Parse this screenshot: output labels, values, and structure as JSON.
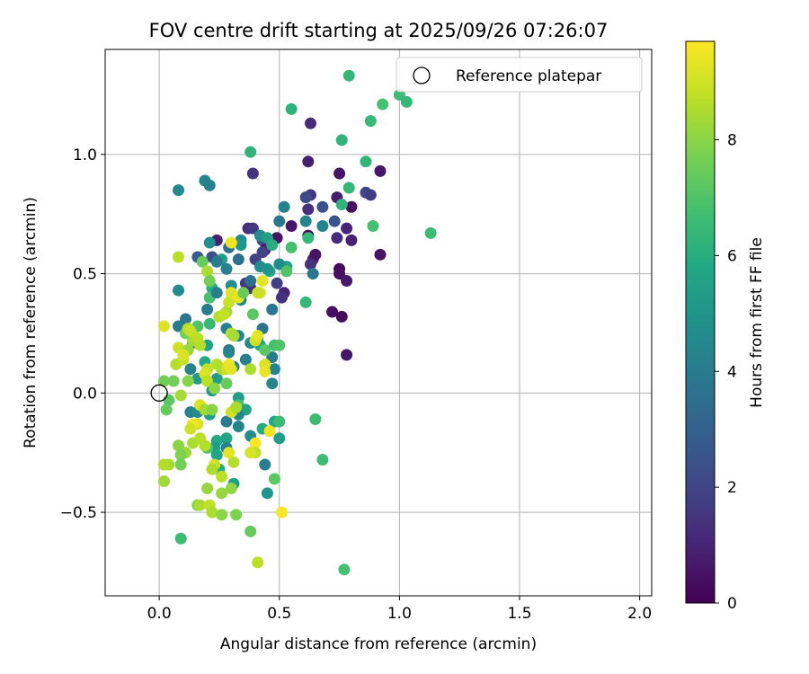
{
  "chart_data": {
    "type": "scatter",
    "title": "FOV centre drift starting at 2025/09/26 07:26:07",
    "xlabel": "Angular distance from reference (arcmin)",
    "ylabel": "Rotation from reference (arcmin)",
    "xlim": [
      -0.225,
      2.05
    ],
    "ylim": [
      -0.85,
      1.44
    ],
    "xticks": [
      0.0,
      0.5,
      1.0,
      1.5,
      2.0
    ],
    "xtick_labels": [
      "0.0",
      "0.5",
      "1.0",
      "1.5",
      "2.0"
    ],
    "yticks": [
      -0.5,
      0.0,
      0.5,
      1.0
    ],
    "ytick_labels": [
      "−0.5",
      "0.0",
      "0.5",
      "1.0"
    ],
    "grid": true,
    "legend": {
      "position": "top-right",
      "label": "Reference platepar"
    },
    "reference_point": {
      "x": 0.0,
      "y": 0.0
    },
    "colorbar": {
      "label": "Hours from first FF file",
      "min": 0,
      "max": 9.7,
      "ticks": [
        0,
        2,
        4,
        6,
        8
      ],
      "tick_labels": [
        "0",
        "2",
        "4",
        "6",
        "8"
      ],
      "colormap": "viridis"
    },
    "points": [
      {
        "x": 0.39,
        "y": 0.92,
        "h": 1.5
      },
      {
        "x": 0.63,
        "y": 1.13,
        "h": 1.2
      },
      {
        "x": 0.62,
        "y": 0.97,
        "h": 0.8
      },
      {
        "x": 0.75,
        "y": 0.92,
        "h": 0.5
      },
      {
        "x": 0.92,
        "y": 0.93,
        "h": 0.6
      },
      {
        "x": 0.86,
        "y": 0.84,
        "h": 2.0
      },
      {
        "x": 0.88,
        "y": 0.83,
        "h": 1.7
      },
      {
        "x": 0.63,
        "y": 0.83,
        "h": 1.6
      },
      {
        "x": 0.61,
        "y": 0.82,
        "h": 2.2
      },
      {
        "x": 0.74,
        "y": 0.82,
        "h": 0.8
      },
      {
        "x": 0.8,
        "y": 0.78,
        "h": 0.4
      },
      {
        "x": 0.68,
        "y": 0.78,
        "h": 2.4
      },
      {
        "x": 0.62,
        "y": 0.77,
        "h": 1.3
      },
      {
        "x": 0.73,
        "y": 0.72,
        "h": 2.5
      },
      {
        "x": 0.78,
        "y": 0.69,
        "h": 1.0
      },
      {
        "x": 0.55,
        "y": 0.7,
        "h": 0.6
      },
      {
        "x": 0.74,
        "y": 0.65,
        "h": 1.2
      },
      {
        "x": 0.8,
        "y": 0.64,
        "h": 0.9
      },
      {
        "x": 0.62,
        "y": 0.66,
        "h": 0.3
      },
      {
        "x": 0.37,
        "y": 0.69,
        "h": 1.3
      },
      {
        "x": 0.39,
        "y": 0.69,
        "h": 1.6
      },
      {
        "x": 0.49,
        "y": 0.65,
        "h": 0.5
      },
      {
        "x": 0.43,
        "y": 0.64,
        "h": 2.2
      },
      {
        "x": 0.44,
        "y": 0.6,
        "h": 0.7
      },
      {
        "x": 0.64,
        "y": 0.56,
        "h": 1.0
      },
      {
        "x": 0.65,
        "y": 0.58,
        "h": 0.5
      },
      {
        "x": 0.63,
        "y": 0.54,
        "h": 1.4
      },
      {
        "x": 0.43,
        "y": 0.59,
        "h": 1.9
      },
      {
        "x": 0.75,
        "y": 0.52,
        "h": 0.2
      },
      {
        "x": 0.75,
        "y": 0.5,
        "h": 0.4
      },
      {
        "x": 0.78,
        "y": 0.47,
        "h": 0.7
      },
      {
        "x": 0.92,
        "y": 0.58,
        "h": 0.5
      },
      {
        "x": 0.72,
        "y": 0.34,
        "h": 0.4
      },
      {
        "x": 0.76,
        "y": 0.32,
        "h": 0.3
      },
      {
        "x": 0.78,
        "y": 0.16,
        "h": 0.6
      },
      {
        "x": 0.52,
        "y": 0.42,
        "h": 1.0
      },
      {
        "x": 0.51,
        "y": 0.4,
        "h": 1.4
      },
      {
        "x": 0.49,
        "y": 0.46,
        "h": 1.8
      },
      {
        "x": 0.36,
        "y": 0.46,
        "h": 1.6
      },
      {
        "x": 0.38,
        "y": 0.44,
        "h": 1.2
      },
      {
        "x": 0.4,
        "y": 0.56,
        "h": 1.9
      },
      {
        "x": 0.24,
        "y": 0.64,
        "h": 0.9
      },
      {
        "x": 0.22,
        "y": 0.57,
        "h": 2.3
      },
      {
        "x": 0.16,
        "y": 0.57,
        "h": 2.8
      },
      {
        "x": 0.38,
        "y": 1.01,
        "h": 6.3
      },
      {
        "x": 0.55,
        "y": 1.19,
        "h": 6.2
      },
      {
        "x": 0.79,
        "y": 1.33,
        "h": 6.4
      },
      {
        "x": 1.0,
        "y": 1.25,
        "h": 6.6
      },
      {
        "x": 1.03,
        "y": 1.22,
        "h": 6.4
      },
      {
        "x": 0.93,
        "y": 1.21,
        "h": 6.8
      },
      {
        "x": 0.88,
        "y": 1.14,
        "h": 6.5
      },
      {
        "x": 0.76,
        "y": 1.06,
        "h": 6.3
      },
      {
        "x": 0.86,
        "y": 0.97,
        "h": 6.3
      },
      {
        "x": 0.79,
        "y": 0.86,
        "h": 6.4
      },
      {
        "x": 0.76,
        "y": 0.79,
        "h": 6.3
      },
      {
        "x": 0.89,
        "y": 0.7,
        "h": 6.8
      },
      {
        "x": 1.13,
        "y": 0.67,
        "h": 6.6
      },
      {
        "x": 0.08,
        "y": 0.85,
        "h": 4.5
      },
      {
        "x": 0.19,
        "y": 0.89,
        "h": 4.4
      },
      {
        "x": 0.21,
        "y": 0.87,
        "h": 4.2
      },
      {
        "x": 0.52,
        "y": 0.78,
        "h": 4.3
      },
      {
        "x": 0.61,
        "y": 0.72,
        "h": 4.4
      },
      {
        "x": 0.68,
        "y": 0.7,
        "h": 4.4
      },
      {
        "x": 0.5,
        "y": 0.72,
        "h": 3.8
      },
      {
        "x": 0.42,
        "y": 0.66,
        "h": 4.7
      },
      {
        "x": 0.45,
        "y": 0.65,
        "h": 5.4
      },
      {
        "x": 0.47,
        "y": 0.62,
        "h": 6.0
      },
      {
        "x": 0.62,
        "y": 0.65,
        "h": 6.4
      },
      {
        "x": 0.55,
        "y": 0.61,
        "h": 6.8
      },
      {
        "x": 0.53,
        "y": 0.53,
        "h": 5.6
      },
      {
        "x": 0.46,
        "y": 0.51,
        "h": 5.8
      },
      {
        "x": 0.5,
        "y": 0.54,
        "h": 4.6
      },
      {
        "x": 0.42,
        "y": 0.53,
        "h": 4.7
      },
      {
        "x": 0.45,
        "y": 0.52,
        "h": 5.0
      },
      {
        "x": 0.34,
        "y": 0.64,
        "h": 4.6
      },
      {
        "x": 0.34,
        "y": 0.62,
        "h": 5.0
      },
      {
        "x": 0.29,
        "y": 0.61,
        "h": 3.6
      },
      {
        "x": 0.26,
        "y": 0.56,
        "h": 5.5
      },
      {
        "x": 0.24,
        "y": 0.55,
        "h": 4.0
      },
      {
        "x": 0.21,
        "y": 0.63,
        "h": 4.8
      },
      {
        "x": 0.28,
        "y": 0.52,
        "h": 4.2
      },
      {
        "x": 0.33,
        "y": 0.56,
        "h": 3.5
      },
      {
        "x": 0.61,
        "y": 0.38,
        "h": 6.4
      },
      {
        "x": 0.64,
        "y": 0.5,
        "h": 3.8
      },
      {
        "x": 0.38,
        "y": 0.47,
        "h": 3.6
      },
      {
        "x": 0.34,
        "y": 0.39,
        "h": 4.7
      },
      {
        "x": 0.3,
        "y": 0.45,
        "h": 4.7
      },
      {
        "x": 0.22,
        "y": 0.44,
        "h": 6.1
      },
      {
        "x": 0.21,
        "y": 0.4,
        "h": 6.8
      },
      {
        "x": 0.08,
        "y": 0.43,
        "h": 4.6
      },
      {
        "x": 0.24,
        "y": 0.42,
        "h": 4.1
      },
      {
        "x": 0.2,
        "y": 0.35,
        "h": 4.0
      },
      {
        "x": 0.47,
        "y": 0.35,
        "h": 3.8
      },
      {
        "x": 0.43,
        "y": 0.27,
        "h": 3.7
      },
      {
        "x": 0.41,
        "y": 0.23,
        "h": 4.0
      },
      {
        "x": 0.38,
        "y": 0.21,
        "h": 4.5
      },
      {
        "x": 0.33,
        "y": 0.24,
        "h": 4.4
      },
      {
        "x": 0.28,
        "y": 0.27,
        "h": 4.2
      },
      {
        "x": 0.21,
        "y": 0.29,
        "h": 6.5
      },
      {
        "x": 0.16,
        "y": 0.28,
        "h": 7.0
      },
      {
        "x": 0.11,
        "y": 0.31,
        "h": 3.8
      },
      {
        "x": 0.08,
        "y": 0.28,
        "h": 4.0
      },
      {
        "x": 0.11,
        "y": 0.25,
        "h": 7.6
      },
      {
        "x": 0.14,
        "y": 0.21,
        "h": 4.4
      },
      {
        "x": 0.2,
        "y": 0.2,
        "h": 5.6
      },
      {
        "x": 0.29,
        "y": 0.18,
        "h": 3.6
      },
      {
        "x": 0.29,
        "y": 0.17,
        "h": 4.4
      },
      {
        "x": 0.36,
        "y": 0.14,
        "h": 4.2
      },
      {
        "x": 0.31,
        "y": 0.11,
        "h": 4.4
      },
      {
        "x": 0.47,
        "y": 0.15,
        "h": 4.0
      },
      {
        "x": 0.48,
        "y": 0.1,
        "h": 4.3
      },
      {
        "x": 0.47,
        "y": 0.04,
        "h": 4.3
      },
      {
        "x": 0.42,
        "y": 0.2,
        "h": 5.8
      },
      {
        "x": 0.44,
        "y": 0.18,
        "h": 7.2
      },
      {
        "x": 0.48,
        "y": 0.2,
        "h": 6.7
      },
      {
        "x": 0.5,
        "y": 0.2,
        "h": 7.0
      },
      {
        "x": 0.13,
        "y": 0.1,
        "h": 4.3
      },
      {
        "x": 0.19,
        "y": 0.13,
        "h": 5.8
      },
      {
        "x": 0.16,
        "y": 0.06,
        "h": 5.3
      },
      {
        "x": 0.24,
        "y": 0.06,
        "h": 5.3
      },
      {
        "x": 0.22,
        "y": 0.01,
        "h": 5.2
      },
      {
        "x": 0.13,
        "y": -0.08,
        "h": 4.2
      },
      {
        "x": 0.16,
        "y": -0.08,
        "h": 4.6
      },
      {
        "x": 0.21,
        "y": -0.09,
        "h": 5.4
      },
      {
        "x": 0.33,
        "y": -0.02,
        "h": 5.4
      },
      {
        "x": 0.33,
        "y": -0.05,
        "h": 6.7
      },
      {
        "x": 0.36,
        "y": -0.07,
        "h": 5.7
      },
      {
        "x": 0.33,
        "y": -0.09,
        "h": 4.4
      },
      {
        "x": 0.28,
        "y": -0.12,
        "h": 3.9
      },
      {
        "x": 0.33,
        "y": -0.14,
        "h": 4.4
      },
      {
        "x": 0.38,
        "y": -0.18,
        "h": 4.7
      },
      {
        "x": 0.43,
        "y": -0.15,
        "h": 5.9
      },
      {
        "x": 0.48,
        "y": -0.12,
        "h": 5.8
      },
      {
        "x": 0.5,
        "y": -0.12,
        "h": 6.6
      },
      {
        "x": 0.5,
        "y": -0.19,
        "h": 5.4
      },
      {
        "x": 0.24,
        "y": -0.2,
        "h": 5.8
      },
      {
        "x": 0.28,
        "y": -0.19,
        "h": 5.6
      },
      {
        "x": 0.28,
        "y": -0.23,
        "h": 4.2
      },
      {
        "x": 0.23,
        "y": -0.23,
        "h": 5.3
      },
      {
        "x": 0.2,
        "y": -0.23,
        "h": 7.0
      },
      {
        "x": 0.24,
        "y": -0.26,
        "h": 5.7
      },
      {
        "x": 0.25,
        "y": -0.32,
        "h": 5.9
      },
      {
        "x": 0.31,
        "y": -0.38,
        "h": 5.5
      },
      {
        "x": 0.44,
        "y": -0.3,
        "h": 4.1
      },
      {
        "x": 0.45,
        "y": -0.42,
        "h": 5.0
      },
      {
        "x": 0.65,
        "y": -0.11,
        "h": 6.6
      },
      {
        "x": 0.68,
        "y": -0.28,
        "h": 6.6
      },
      {
        "x": 0.48,
        "y": -0.36,
        "h": 7.2
      },
      {
        "x": 0.38,
        "y": -0.58,
        "h": 7.4
      },
      {
        "x": 0.77,
        "y": -0.74,
        "h": 6.8
      },
      {
        "x": 0.09,
        "y": -0.61,
        "h": 6.6
      },
      {
        "x": 0.03,
        "y": -0.07,
        "h": 7.4
      },
      {
        "x": 0.04,
        "y": -0.03,
        "h": 7.2
      },
      {
        "x": 0.06,
        "y": 0.05,
        "h": 7.6
      },
      {
        "x": 0.02,
        "y": 0.05,
        "h": 7.6
      },
      {
        "x": 0.07,
        "y": 0.12,
        "h": 8.6
      },
      {
        "x": 0.1,
        "y": 0.14,
        "h": 8.8
      },
      {
        "x": 0.08,
        "y": 0.19,
        "h": 9.0
      },
      {
        "x": 0.12,
        "y": 0.18,
        "h": 8.2
      },
      {
        "x": 0.1,
        "y": 0.16,
        "h": 9.2
      },
      {
        "x": 0.14,
        "y": 0.22,
        "h": 8.4
      },
      {
        "x": 0.17,
        "y": 0.2,
        "h": 8.6
      },
      {
        "x": 0.12,
        "y": 0.27,
        "h": 8.6
      },
      {
        "x": 0.13,
        "y": 0.26,
        "h": 8.9
      },
      {
        "x": 0.16,
        "y": 0.23,
        "h": 8.7
      },
      {
        "x": 0.02,
        "y": 0.28,
        "h": 9.2
      },
      {
        "x": 0.2,
        "y": 0.1,
        "h": 8.8
      },
      {
        "x": 0.19,
        "y": 0.08,
        "h": 9.2
      },
      {
        "x": 0.2,
        "y": 0.05,
        "h": 8.7
      },
      {
        "x": 0.24,
        "y": 0.12,
        "h": 8.6
      },
      {
        "x": 0.26,
        "y": 0.1,
        "h": 8.5
      },
      {
        "x": 0.28,
        "y": 0.1,
        "h": 8.9
      },
      {
        "x": 0.29,
        "y": 0.12,
        "h": 9.5
      },
      {
        "x": 0.3,
        "y": 0.1,
        "h": 9.3
      },
      {
        "x": 0.3,
        "y": 0.25,
        "h": 8.6
      },
      {
        "x": 0.31,
        "y": 0.24,
        "h": 8.4
      },
      {
        "x": 0.28,
        "y": 0.34,
        "h": 8.3
      },
      {
        "x": 0.25,
        "y": 0.32,
        "h": 8.6
      },
      {
        "x": 0.27,
        "y": 0.33,
        "h": 8.8
      },
      {
        "x": 0.29,
        "y": 0.38,
        "h": 8.9
      },
      {
        "x": 0.3,
        "y": 0.42,
        "h": 9.2
      },
      {
        "x": 0.33,
        "y": 0.4,
        "h": 9.3
      },
      {
        "x": 0.3,
        "y": 0.63,
        "h": 9.5
      },
      {
        "x": 0.08,
        "y": 0.57,
        "h": 8.7
      },
      {
        "x": 0.18,
        "y": 0.55,
        "h": 7.4
      },
      {
        "x": 0.2,
        "y": 0.51,
        "h": 8.5
      },
      {
        "x": 0.21,
        "y": 0.47,
        "h": 7.6
      },
      {
        "x": 0.42,
        "y": 0.42,
        "h": 9.1
      },
      {
        "x": 0.43,
        "y": 0.47,
        "h": 9.3
      },
      {
        "x": 0.38,
        "y": 0.1,
        "h": 8.5
      },
      {
        "x": 0.4,
        "y": 0.22,
        "h": 9.0
      },
      {
        "x": 0.41,
        "y": 0.24,
        "h": 9.3
      },
      {
        "x": 0.44,
        "y": 0.12,
        "h": 9.2
      },
      {
        "x": 0.44,
        "y": 0.09,
        "h": 9.4
      },
      {
        "x": 0.46,
        "y": -0.16,
        "h": 9.5
      },
      {
        "x": 0.4,
        "y": -0.21,
        "h": 9.6
      },
      {
        "x": 0.4,
        "y": -0.25,
        "h": 8.8
      },
      {
        "x": 0.38,
        "y": -0.25,
        "h": 9.1
      },
      {
        "x": 0.51,
        "y": -0.5,
        "h": 9.6
      },
      {
        "x": 0.41,
        "y": -0.71,
        "h": 8.7
      },
      {
        "x": 0.17,
        "y": -0.05,
        "h": 9.2
      },
      {
        "x": 0.19,
        "y": -0.07,
        "h": 8.4
      },
      {
        "x": 0.22,
        "y": -0.07,
        "h": 8.0
      },
      {
        "x": 0.16,
        "y": -0.13,
        "h": 9.1
      },
      {
        "x": 0.14,
        "y": -0.13,
        "h": 9.5
      },
      {
        "x": 0.13,
        "y": -0.15,
        "h": 9.0
      },
      {
        "x": 0.17,
        "y": -0.19,
        "h": 8.7
      },
      {
        "x": 0.14,
        "y": -0.21,
        "h": 8.5
      },
      {
        "x": 0.19,
        "y": -0.22,
        "h": 8.6
      },
      {
        "x": 0.11,
        "y": -0.25,
        "h": 8.3
      },
      {
        "x": 0.08,
        "y": -0.22,
        "h": 8.0
      },
      {
        "x": 0.09,
        "y": -0.26,
        "h": 7.8
      },
      {
        "x": 0.04,
        "y": -0.3,
        "h": 8.4
      },
      {
        "x": 0.02,
        "y": -0.3,
        "h": 8.6
      },
      {
        "x": 0.02,
        "y": -0.37,
        "h": 8.3
      },
      {
        "x": 0.09,
        "y": -0.3,
        "h": 7.6
      },
      {
        "x": 0.23,
        "y": -0.3,
        "h": 9.0
      },
      {
        "x": 0.22,
        "y": -0.32,
        "h": 8.5
      },
      {
        "x": 0.31,
        "y": -0.29,
        "h": 8.6
      },
      {
        "x": 0.29,
        "y": -0.25,
        "h": 9.3
      },
      {
        "x": 0.26,
        "y": -0.35,
        "h": 8.7
      },
      {
        "x": 0.2,
        "y": -0.4,
        "h": 8.2
      },
      {
        "x": 0.26,
        "y": -0.42,
        "h": 8.2
      },
      {
        "x": 0.3,
        "y": -0.4,
        "h": 8.1
      },
      {
        "x": 0.16,
        "y": -0.47,
        "h": 7.8
      },
      {
        "x": 0.17,
        "y": -0.47,
        "h": 8.5
      },
      {
        "x": 0.21,
        "y": -0.47,
        "h": 8.8
      },
      {
        "x": 0.22,
        "y": -0.5,
        "h": 8.5
      },
      {
        "x": 0.26,
        "y": -0.51,
        "h": 8.0
      },
      {
        "x": 0.32,
        "y": -0.51,
        "h": 7.8
      },
      {
        "x": 0.3,
        "y": -0.08,
        "h": 9.0
      },
      {
        "x": 0.32,
        "y": -0.06,
        "h": 8.5
      },
      {
        "x": 0.35,
        "y": 0.42,
        "h": 7.5
      },
      {
        "x": 0.39,
        "y": 0.33,
        "h": 7.2
      },
      {
        "x": 0.53,
        "y": 0.51,
        "h": 7.0
      },
      {
        "x": 0.41,
        "y": 0.42,
        "h": 8.9
      },
      {
        "x": 0.09,
        "y": -0.01,
        "h": 8.4
      },
      {
        "x": 0.12,
        "y": 0.05,
        "h": 7.9
      },
      {
        "x": 0.28,
        "y": 0.04,
        "h": 7.4
      },
      {
        "x": 0.23,
        "y": 0.02,
        "h": 8.0
      }
    ]
  }
}
